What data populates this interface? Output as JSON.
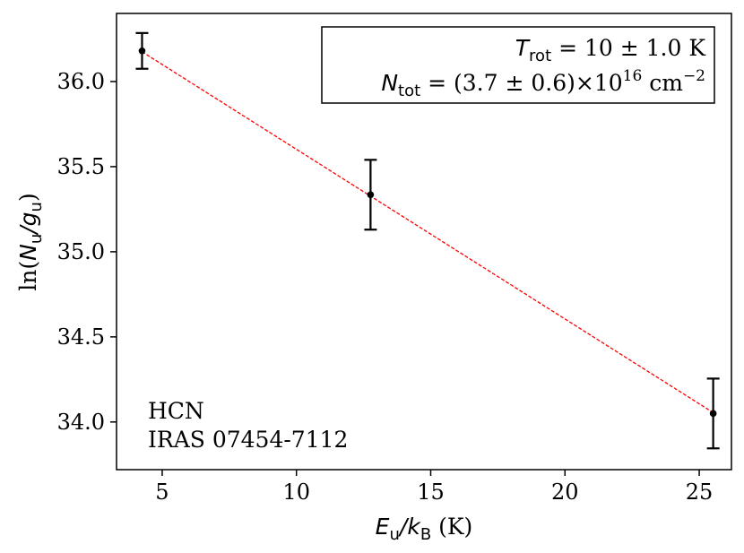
{
  "chart_data": {
    "type": "scatter",
    "xlabel": {
      "main": "E",
      "sub1": "u",
      "slash": "/",
      "k": "k",
      "sub2": "B",
      "unit": " (K)"
    },
    "ylabel": {
      "pre": "ln(",
      "main": "N",
      "sub1": "u",
      "slash": "/",
      "g": "g",
      "sub2": "u",
      "post": ")"
    },
    "xlim": [
      3.3,
      26.2
    ],
    "ylim": [
      33.72,
      36.4
    ],
    "x_ticks": [
      5,
      10,
      15,
      20,
      25
    ],
    "y_ticks": [
      34.0,
      34.5,
      35.0,
      35.5,
      36.0
    ],
    "x_tick_labels": [
      "5",
      "10",
      "15",
      "20",
      "25"
    ],
    "y_tick_labels": [
      "34.0",
      "34.5",
      "35.0",
      "35.5",
      "36.0"
    ],
    "series": [
      {
        "points": [
          {
            "x": 4.25,
            "y": 36.18,
            "err": 0.105
          },
          {
            "x": 12.76,
            "y": 35.335,
            "err": 0.205
          },
          {
            "x": 25.52,
            "y": 34.05,
            "err": 0.205
          }
        ],
        "color": "#000000"
      }
    ],
    "fit": {
      "x": [
        4.25,
        25.52
      ],
      "y": [
        36.175,
        34.055
      ],
      "color": "#ff0000",
      "style": "dashed"
    },
    "legend_box": {
      "line1": {
        "sym": "T",
        "sub": "rot",
        "text": " = 10 ± 1.0 K"
      },
      "line2": {
        "sym": "N",
        "sub": "tot",
        "text1": " = (3.7 ± 0.6)×10",
        "sup1": "16",
        "text2": " cm",
        "sup2": "−2"
      }
    },
    "annotations": {
      "line1": "HCN",
      "line2": "IRAS 07454-7112"
    }
  }
}
